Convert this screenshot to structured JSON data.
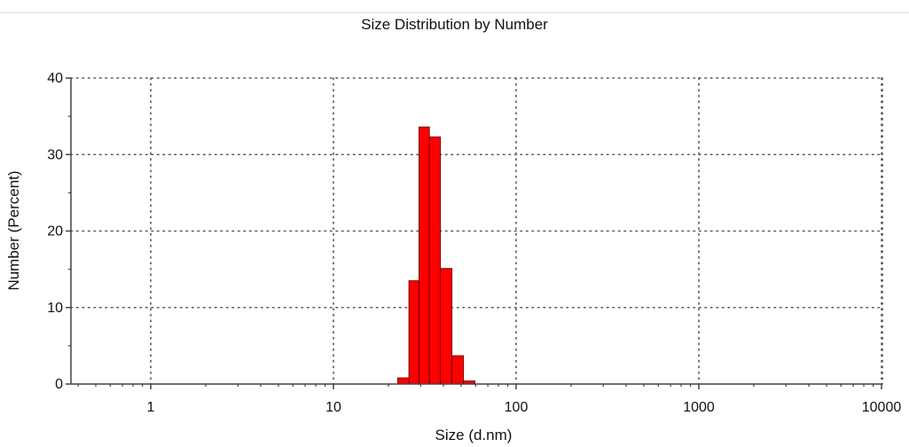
{
  "chart_data": {
    "type": "bar",
    "title": "Size Distribution by Number",
    "xlabel": "Size (d.nm)",
    "ylabel": "Number (Percent)",
    "x_scale": "log",
    "xlim": [
      0.4,
      10000
    ],
    "ylim": [
      0,
      40
    ],
    "x_ticks": [
      1,
      10,
      100,
      1000,
      10000
    ],
    "x_tick_labels": [
      "1",
      "10",
      "100",
      "1000",
      "10000"
    ],
    "y_ticks": [
      0,
      10,
      20,
      30,
      40
    ],
    "y_tick_labels": [
      "0",
      "10",
      "20",
      "30",
      "40"
    ],
    "grid": true,
    "bar_color": "#ff0000",
    "bins": [
      {
        "x_min": 22.5,
        "x_max": 25.9,
        "value": 0.8
      },
      {
        "x_min": 25.9,
        "x_max": 29.4,
        "value": 13.5
      },
      {
        "x_min": 29.4,
        "x_max": 33.5,
        "value": 33.6
      },
      {
        "x_min": 33.5,
        "x_max": 38.5,
        "value": 32.3
      },
      {
        "x_min": 38.5,
        "x_max": 44.5,
        "value": 15.1
      },
      {
        "x_min": 44.5,
        "x_max": 51.5,
        "value": 3.7
      },
      {
        "x_min": 51.5,
        "x_max": 59.5,
        "value": 0.4
      }
    ]
  }
}
